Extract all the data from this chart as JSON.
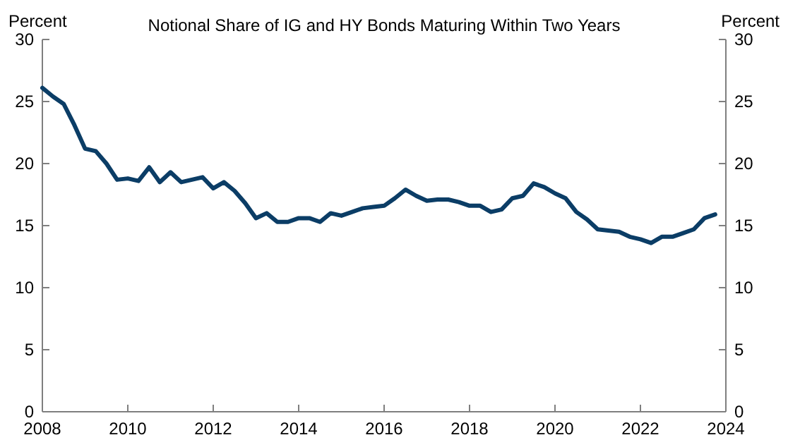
{
  "chart_data": {
    "type": "line",
    "title": "Notional Share of IG and HY Bonds Maturing Within Two Years",
    "ylabel": "Percent",
    "y2label": "Percent",
    "x": [
      2008,
      2008.25,
      2008.5,
      2008.75,
      2009,
      2009.25,
      2009.5,
      2009.75,
      2010,
      2010.25,
      2010.5,
      2010.75,
      2011,
      2011.25,
      2011.5,
      2011.75,
      2012,
      2012.25,
      2012.5,
      2012.75,
      2013,
      2013.25,
      2013.5,
      2013.75,
      2014,
      2014.25,
      2014.5,
      2014.75,
      2015,
      2015.25,
      2015.5,
      2015.75,
      2016,
      2016.25,
      2016.5,
      2016.75,
      2017,
      2017.25,
      2017.5,
      2017.75,
      2018,
      2018.25,
      2018.5,
      2018.75,
      2019,
      2019.25,
      2019.5,
      2019.75,
      2020,
      2020.25,
      2020.5,
      2020.75,
      2021,
      2021.25,
      2021.5,
      2021.75,
      2022,
      2022.25,
      2022.5,
      2022.75,
      2023,
      2023.25,
      2023.5,
      2023.75
    ],
    "series": [
      {
        "color": "#0b3d66",
        "values": [
          26.1,
          25.4,
          24.8,
          23.1,
          21.2,
          21.0,
          20.0,
          18.7,
          18.8,
          18.6,
          19.7,
          18.5,
          19.3,
          18.5,
          18.7,
          18.9,
          18.0,
          18.5,
          17.8,
          16.8,
          15.6,
          16.0,
          15.3,
          15.3,
          15.6,
          15.6,
          15.3,
          16.0,
          15.8,
          16.1,
          16.4,
          16.5,
          16.6,
          17.2,
          17.9,
          17.4,
          17.0,
          17.1,
          17.1,
          16.9,
          16.6,
          16.6,
          16.1,
          16.3,
          17.2,
          17.4,
          18.4,
          18.1,
          17.6,
          17.2,
          16.1,
          15.5,
          14.7,
          14.6,
          14.5,
          14.1,
          13.9,
          13.6,
          14.1,
          14.1,
          14.4,
          14.7,
          15.6,
          15.9
        ]
      }
    ],
    "xlim": [
      2008,
      2024
    ],
    "xticks": [
      2008,
      2010,
      2012,
      2014,
      2016,
      2018,
      2020,
      2022,
      2024
    ],
    "ylim": [
      0,
      30
    ],
    "yticks": [
      0,
      5,
      10,
      15,
      20,
      25,
      30
    ],
    "y2lim": [
      0,
      30
    ],
    "y2ticks": [
      0,
      5,
      10,
      15,
      20,
      25,
      30
    ],
    "grid": false,
    "marker": "none",
    "line_style": "solid"
  }
}
